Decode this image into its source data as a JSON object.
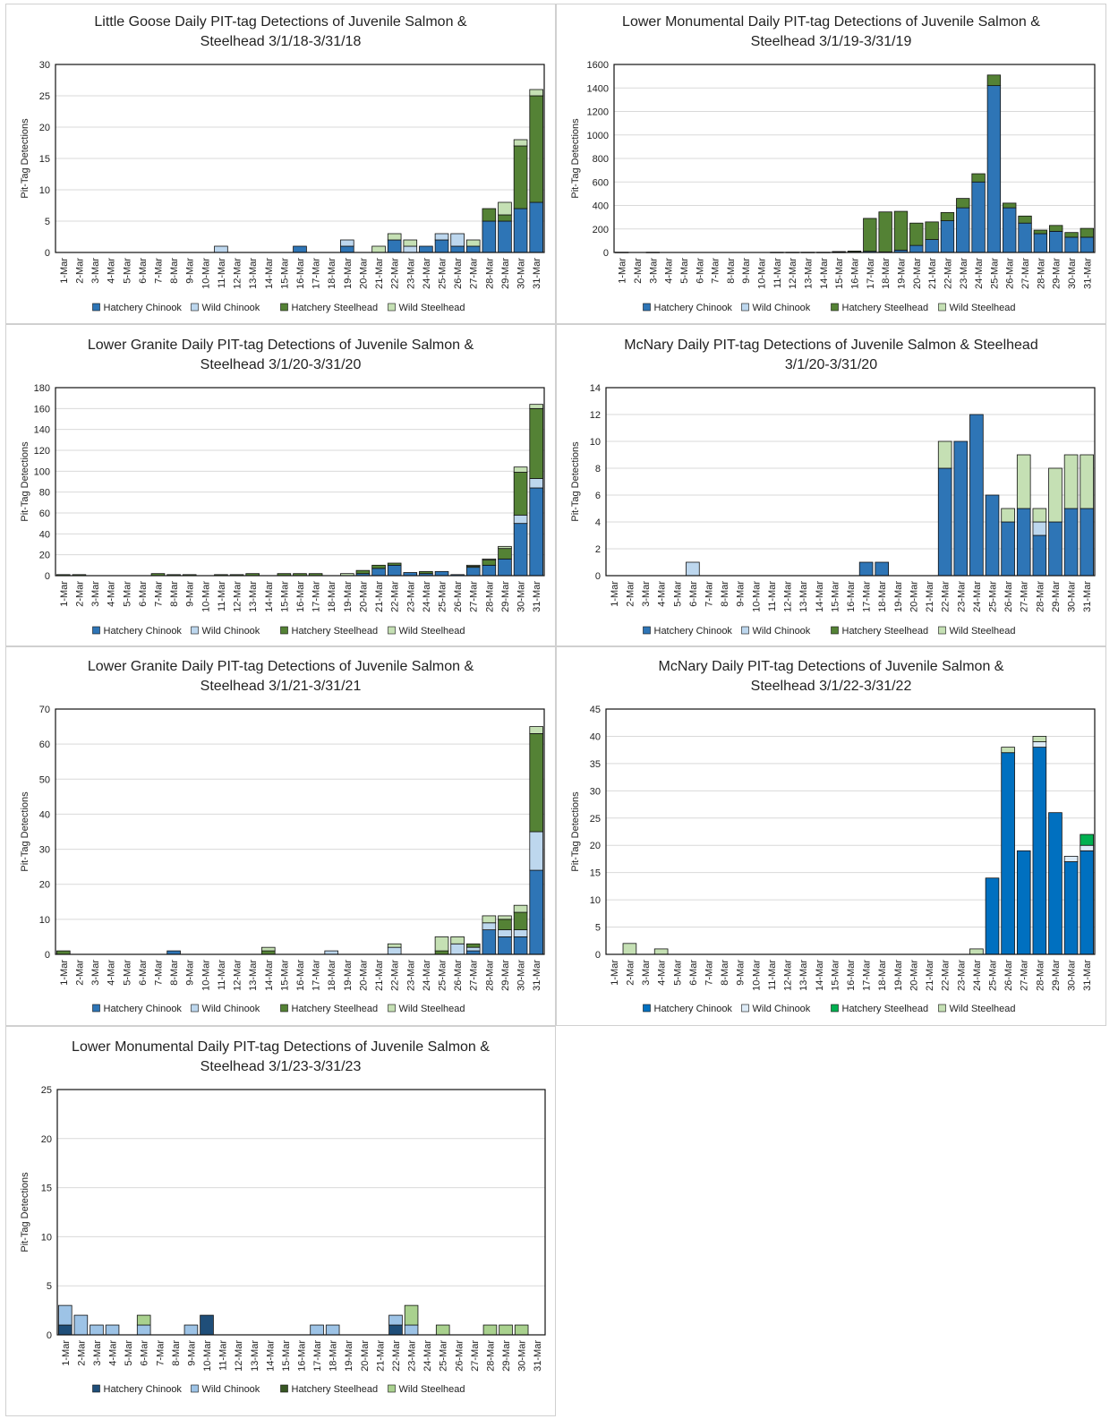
{
  "ylabel": "Pit-Tag Detections",
  "categories": [
    "1-Mar",
    "2-Mar",
    "3-Mar",
    "4-Mar",
    "5-Mar",
    "6-Mar",
    "7-Mar",
    "8-Mar",
    "9-Mar",
    "10-Mar",
    "11-Mar",
    "12-Mar",
    "13-Mar",
    "14-Mar",
    "15-Mar",
    "16-Mar",
    "17-Mar",
    "18-Mar",
    "19-Mar",
    "20-Mar",
    "21-Mar",
    "22-Mar",
    "23-Mar",
    "24-Mar",
    "25-Mar",
    "26-Mar",
    "27-Mar",
    "28-Mar",
    "29-Mar",
    "30-Mar",
    "31-Mar"
  ],
  "legend": [
    "Hatchery Chinook",
    "Wild Chinook",
    "Hatchery Steelhead",
    "Wild Steelhead"
  ],
  "chart_data": [
    {
      "type": "bar",
      "stacked": true,
      "title": [
        "Little Goose Daily PIT-tag Detections of Juvenile Salmon &",
        "Steelhead 3/1/18-3/31/18"
      ],
      "ylabel": "Pit-Tag Detections",
      "ylim": [
        0,
        30
      ],
      "yticks": [
        0,
        5,
        10,
        15,
        20,
        25,
        30
      ],
      "colors": [
        "#2e75b6",
        "#bdd7ee",
        "#548235",
        "#c5e0b4"
      ],
      "series": [
        {
          "name": "Hatchery Chinook",
          "values": [
            0,
            0,
            0,
            0,
            0,
            0,
            0,
            0,
            0,
            0,
            0,
            0,
            0,
            0,
            0,
            1,
            0,
            0,
            1,
            0,
            0,
            2,
            0,
            1,
            2,
            1,
            1,
            5,
            5,
            7,
            8
          ]
        },
        {
          "name": "Wild Chinook",
          "values": [
            0,
            0,
            0,
            0,
            0,
            0,
            0,
            0,
            0,
            0,
            1,
            0,
            0,
            0,
            0,
            0,
            0,
            0,
            1,
            0,
            0,
            0,
            1,
            0,
            1,
            2,
            0,
            0,
            0,
            0,
            0
          ]
        },
        {
          "name": "Hatchery Steelhead",
          "values": [
            0,
            0,
            0,
            0,
            0,
            0,
            0,
            0,
            0,
            0,
            0,
            0,
            0,
            0,
            0,
            0,
            0,
            0,
            0,
            0,
            0,
            0,
            0,
            0,
            0,
            0,
            0,
            2,
            1,
            10,
            17
          ]
        },
        {
          "name": "Wild Steelhead",
          "values": [
            0,
            0,
            0,
            0,
            0,
            0,
            0,
            0,
            0,
            0,
            0,
            0,
            0,
            0,
            0,
            0,
            0,
            0,
            0,
            0,
            1,
            1,
            1,
            0,
            0,
            0,
            1,
            0,
            2,
            1,
            1
          ]
        }
      ]
    },
    {
      "type": "bar",
      "stacked": true,
      "title": [
        "Lower Monumental Daily PIT-tag Detections of Juvenile Salmon &",
        "Steelhead 3/1/19-3/31/19"
      ],
      "ylabel": "Pit-Tag Detections",
      "ylim": [
        0,
        1600
      ],
      "yticks": [
        0,
        200,
        400,
        600,
        800,
        1000,
        1200,
        1400,
        1600
      ],
      "colors": [
        "#2e75b6",
        "#bdd7ee",
        "#548235",
        "#c5e0b4"
      ],
      "series": [
        {
          "name": "Hatchery Chinook",
          "values": [
            2,
            0,
            2,
            0,
            0,
            0,
            0,
            0,
            0,
            0,
            2,
            2,
            2,
            2,
            3,
            4,
            10,
            5,
            20,
            60,
            110,
            270,
            380,
            600,
            1420,
            380,
            250,
            160,
            180,
            130,
            130
          ]
        },
        {
          "name": "Wild Chinook",
          "values": [
            0,
            0,
            0,
            0,
            0,
            0,
            0,
            0,
            0,
            0,
            0,
            0,
            0,
            0,
            0,
            0,
            0,
            0,
            0,
            0,
            0,
            0,
            0,
            0,
            0,
            0,
            0,
            0,
            0,
            0,
            0
          ]
        },
        {
          "name": "Hatchery Steelhead",
          "values": [
            0,
            0,
            0,
            0,
            0,
            0,
            0,
            0,
            0,
            0,
            0,
            0,
            0,
            0,
            5,
            8,
            280,
            340,
            330,
            190,
            150,
            70,
            80,
            70,
            90,
            40,
            60,
            30,
            50,
            40,
            75
          ]
        },
        {
          "name": "Wild Steelhead",
          "values": [
            0,
            0,
            0,
            0,
            0,
            0,
            0,
            0,
            0,
            0,
            0,
            0,
            0,
            0,
            0,
            0,
            0,
            0,
            0,
            0,
            0,
            0,
            0,
            0,
            0,
            0,
            0,
            0,
            0,
            0,
            0
          ]
        }
      ]
    },
    {
      "type": "bar",
      "stacked": true,
      "title": [
        "Lower Granite Daily PIT-tag Detections of Juvenile Salmon &",
        "Steelhead 3/1/20-3/31/20"
      ],
      "ylabel": "Pit-Tag Detections",
      "ylim": [
        0,
        180
      ],
      "yticks": [
        0,
        20,
        40,
        60,
        80,
        100,
        120,
        140,
        160,
        180
      ],
      "colors": [
        "#2e75b6",
        "#bdd7ee",
        "#548235",
        "#c5e0b4"
      ],
      "series": [
        {
          "name": "Hatchery Chinook",
          "values": [
            0,
            0,
            0,
            0,
            0,
            0,
            0,
            0,
            0,
            0,
            0,
            0,
            0,
            0,
            0,
            0,
            0,
            0,
            0,
            2,
            7,
            10,
            3,
            2,
            4,
            1,
            8,
            10,
            16,
            50,
            84
          ]
        },
        {
          "name": "Wild Chinook",
          "values": [
            0,
            0,
            0,
            0,
            0,
            0,
            0,
            0,
            0,
            0,
            0,
            0,
            0,
            0,
            0,
            0,
            0,
            0,
            0,
            0,
            0,
            0,
            0,
            0,
            0,
            0,
            0,
            0,
            0,
            8,
            9
          ]
        },
        {
          "name": "Hatchery Steelhead",
          "values": [
            1,
            1,
            0,
            0,
            0,
            0,
            2,
            1,
            1,
            0,
            1,
            1,
            2,
            0,
            2,
            2,
            2,
            0,
            0,
            3,
            3,
            2,
            0,
            2,
            0,
            0,
            1,
            5,
            10,
            41,
            67
          ]
        },
        {
          "name": "Wild Steelhead",
          "values": [
            0,
            0,
            0,
            0,
            0,
            0,
            0,
            0,
            0,
            0,
            0,
            0,
            0,
            0,
            0,
            0,
            0,
            0,
            2,
            0,
            0,
            0,
            0,
            0,
            0,
            0,
            1,
            1,
            2,
            5,
            4
          ]
        }
      ]
    },
    {
      "type": "bar",
      "stacked": true,
      "title": [
        "McNary Daily PIT-tag Detections of Juvenile Salmon & Steelhead",
        "3/1/20-3/31/20"
      ],
      "ylabel": "Pit-Tag Detections",
      "ylim": [
        0,
        14
      ],
      "yticks": [
        0,
        2,
        4,
        6,
        8,
        10,
        12,
        14
      ],
      "colors": [
        "#2e75b6",
        "#bdd7ee",
        "#548235",
        "#c5e0b4"
      ],
      "series": [
        {
          "name": "Hatchery Chinook",
          "values": [
            0,
            0,
            0,
            0,
            0,
            0,
            0,
            0,
            0,
            0,
            0,
            0,
            0,
            0,
            0,
            0,
            1,
            1,
            0,
            0,
            0,
            8,
            10,
            12,
            6,
            4,
            5,
            3,
            4,
            5,
            5
          ]
        },
        {
          "name": "Wild Chinook",
          "values": [
            0,
            0,
            0,
            0,
            0,
            1,
            0,
            0,
            0,
            0,
            0,
            0,
            0,
            0,
            0,
            0,
            0,
            0,
            0,
            0,
            0,
            0,
            0,
            0,
            0,
            0,
            0,
            1,
            0,
            0,
            0
          ]
        },
        {
          "name": "Hatchery Steelhead",
          "values": [
            0,
            0,
            0,
            0,
            0,
            0,
            0,
            0,
            0,
            0,
            0,
            0,
            0,
            0,
            0,
            0,
            0,
            0,
            0,
            0,
            0,
            0,
            0,
            0,
            0,
            0,
            0,
            0,
            0,
            0,
            0
          ]
        },
        {
          "name": "Wild Steelhead",
          "values": [
            0,
            0,
            0,
            0,
            0,
            0,
            0,
            0,
            0,
            0,
            0,
            0,
            0,
            0,
            0,
            0,
            0,
            0,
            0,
            0,
            0,
            2,
            0,
            0,
            0,
            1,
            4,
            1,
            4,
            4,
            4
          ]
        }
      ]
    },
    {
      "type": "bar",
      "stacked": true,
      "title": [
        "Lower Granite Daily PIT-tag Detections of Juvenile Salmon &",
        "Steelhead 3/1/21-3/31/21"
      ],
      "ylabel": "Pit-Tag Detections",
      "ylim": [
        0,
        70
      ],
      "yticks": [
        0,
        10,
        20,
        30,
        40,
        50,
        60,
        70
      ],
      "colors": [
        "#2e75b6",
        "#bdd7ee",
        "#548235",
        "#c5e0b4"
      ],
      "series": [
        {
          "name": "Hatchery Chinook",
          "values": [
            0,
            0,
            0,
            0,
            0,
            0,
            0,
            1,
            0,
            0,
            0,
            0,
            0,
            0,
            0,
            0,
            0,
            0,
            0,
            0,
            0,
            0,
            0,
            0,
            0,
            0,
            1,
            7,
            5,
            5,
            24
          ]
        },
        {
          "name": "Wild Chinook",
          "values": [
            0,
            0,
            0,
            0,
            0,
            0,
            0,
            0,
            0,
            0,
            0,
            0,
            0,
            0,
            0,
            0,
            0,
            1,
            0,
            0,
            0,
            2,
            0,
            0,
            0,
            3,
            1,
            2,
            2,
            2,
            11
          ]
        },
        {
          "name": "Hatchery Steelhead",
          "values": [
            1,
            0,
            0,
            0,
            0,
            0,
            0,
            0,
            0,
            0,
            0,
            0,
            0,
            1,
            0,
            0,
            0,
            0,
            0,
            0,
            0,
            0,
            0,
            0,
            1,
            0,
            1,
            0,
            3,
            5,
            28
          ]
        },
        {
          "name": "Wild Steelhead",
          "values": [
            0,
            0,
            0,
            0,
            0,
            0,
            0,
            0,
            0,
            0,
            0,
            0,
            0,
            1,
            0,
            0,
            0,
            0,
            0,
            0,
            0,
            1,
            0,
            0,
            4,
            2,
            0,
            2,
            1,
            2,
            2
          ]
        }
      ]
    },
    {
      "type": "bar",
      "stacked": true,
      "title": [
        "McNary Daily PIT-tag Detections of Juvenile Salmon &",
        "Steelhead 3/1/22-3/31/22"
      ],
      "ylabel": "Pit-Tag Detections",
      "ylim": [
        0,
        45
      ],
      "yticks": [
        0,
        5,
        10,
        15,
        20,
        25,
        30,
        35,
        40,
        45
      ],
      "colors": [
        "#0070c0",
        "#ddebf7",
        "#00b050",
        "#c5e0b4"
      ],
      "series": [
        {
          "name": "Hatchery Chinook",
          "values": [
            0,
            0,
            0,
            0,
            0,
            0,
            0,
            0,
            0,
            0,
            0,
            0,
            0,
            0,
            0,
            0,
            0,
            0,
            0,
            0,
            0,
            0,
            0,
            0,
            14,
            37,
            19,
            38,
            26,
            17,
            19
          ]
        },
        {
          "name": "Wild Chinook",
          "values": [
            0,
            0,
            0,
            0,
            0,
            0,
            0,
            0,
            0,
            0,
            0,
            0,
            0,
            0,
            0,
            0,
            0,
            0,
            0,
            0,
            0,
            0,
            0,
            0,
            0,
            0,
            0,
            1,
            0,
            1,
            1
          ]
        },
        {
          "name": "Hatchery Steelhead",
          "values": [
            0,
            0,
            0,
            0,
            0,
            0,
            0,
            0,
            0,
            0,
            0,
            0,
            0,
            0,
            0,
            0,
            0,
            0,
            0,
            0,
            0,
            0,
            0,
            0,
            0,
            0,
            0,
            0,
            0,
            0,
            2
          ]
        },
        {
          "name": "Wild Steelhead",
          "values": [
            0,
            2,
            0,
            1,
            0,
            0,
            0,
            0,
            0,
            0,
            0,
            0,
            0,
            0,
            0,
            0,
            0,
            0,
            0,
            0,
            0,
            0,
            0,
            1,
            0,
            1,
            0,
            1,
            0,
            0,
            0
          ]
        }
      ]
    },
    {
      "type": "bar",
      "stacked": true,
      "title": [
        "Lower Monumental Daily PIT-tag Detections of Juvenile Salmon &",
        "Steelhead 3/1/23-3/31/23"
      ],
      "ylabel": "Pit-Tag Detections",
      "ylim": [
        0,
        25
      ],
      "yticks": [
        0,
        5,
        10,
        15,
        20,
        25
      ],
      "colors": [
        "#1f4e79",
        "#9dc3e6",
        "#375623",
        "#a9d18e"
      ],
      "series": [
        {
          "name": "Hatchery Chinook",
          "values": [
            1,
            0,
            0,
            0,
            0,
            0,
            0,
            0,
            0,
            2,
            0,
            0,
            0,
            0,
            0,
            0,
            0,
            0,
            0,
            0,
            0,
            1,
            0,
            0,
            0,
            0,
            0,
            0,
            0,
            0,
            0
          ]
        },
        {
          "name": "Wild Chinook",
          "values": [
            2,
            2,
            1,
            1,
            0,
            1,
            0,
            0,
            1,
            0,
            0,
            0,
            0,
            0,
            0,
            0,
            1,
            1,
            0,
            0,
            0,
            1,
            1,
            0,
            0,
            0,
            0,
            0,
            0,
            0,
            0
          ]
        },
        {
          "name": "Hatchery Steelhead",
          "values": [
            0,
            0,
            0,
            0,
            0,
            0,
            0,
            0,
            0,
            0,
            0,
            0,
            0,
            0,
            0,
            0,
            0,
            0,
            0,
            0,
            0,
            0,
            0,
            0,
            0,
            0,
            0,
            0,
            0,
            0,
            0
          ]
        },
        {
          "name": "Wild Steelhead",
          "values": [
            0,
            0,
            0,
            0,
            0,
            1,
            0,
            0,
            0,
            0,
            0,
            0,
            0,
            0,
            0,
            0,
            0,
            0,
            0,
            0,
            0,
            0,
            2,
            0,
            1,
            0,
            0,
            1,
            1,
            1,
            0
          ]
        }
      ]
    }
  ]
}
